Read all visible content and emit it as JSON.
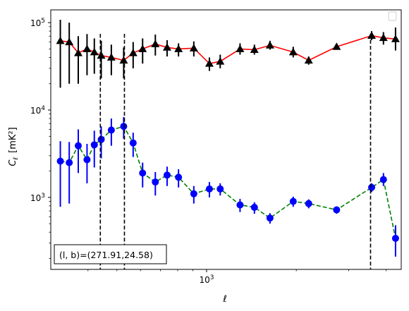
{
  "chart_data": {
    "type": "line",
    "xscale": "log",
    "yscale": "log",
    "xlim": [
      300,
      4500
    ],
    "ylim": [
      150,
      140000
    ],
    "xlabel": "ℓ",
    "ylabel_main": "C",
    "ylabel_sub": "ℓ",
    "ylabel_unit": "[mK²]",
    "xticks": [
      {
        "value": 1000,
        "base": "10",
        "exp": "3"
      }
    ],
    "yticks": [
      {
        "value": 1000,
        "base": "10",
        "exp": "3"
      },
      {
        "value": 10000,
        "base": "10",
        "exp": "4"
      },
      {
        "value": 100000,
        "base": "10",
        "exp": "5"
      }
    ],
    "vlines": [
      440,
      530,
      3550
    ],
    "annotation": "(l, b)=(271.91,24.58)",
    "legend_position": "upper right",
    "series": [
      {
        "line_color": "#ff0000",
        "marker_color": "#000000",
        "marker": "triangle",
        "linestyle": "solid",
        "points": [
          {
            "x": 323,
            "y": 62000,
            "lo": 18000,
            "hi": 108000
          },
          {
            "x": 346,
            "y": 60000,
            "lo": 20000,
            "hi": 100000
          },
          {
            "x": 371,
            "y": 45000,
            "lo": 20000,
            "hi": 70000
          },
          {
            "x": 397,
            "y": 50000,
            "lo": 25000,
            "hi": 74000
          },
          {
            "x": 420,
            "y": 46000,
            "lo": 26000,
            "hi": 66000
          },
          {
            "x": 443,
            "y": 42000,
            "lo": 23000,
            "hi": 62000
          },
          {
            "x": 479,
            "y": 40000,
            "lo": 25000,
            "hi": 56000
          },
          {
            "x": 527,
            "y": 37000,
            "lo": 23000,
            "hi": 52000
          },
          {
            "x": 567,
            "y": 45000,
            "lo": 30000,
            "hi": 60000
          },
          {
            "x": 610,
            "y": 50000,
            "lo": 34000,
            "hi": 66000
          },
          {
            "x": 673,
            "y": 57000,
            "lo": 42000,
            "hi": 73000
          },
          {
            "x": 737,
            "y": 52000,
            "lo": 41000,
            "hi": 63000
          },
          {
            "x": 805,
            "y": 50000,
            "lo": 41000,
            "hi": 58000
          },
          {
            "x": 906,
            "y": 51000,
            "lo": 41000,
            "hi": 61000
          },
          {
            "x": 1022,
            "y": 34000,
            "lo": 28000,
            "hi": 40000
          },
          {
            "x": 1111,
            "y": 36000,
            "lo": 30000,
            "hi": 43000
          },
          {
            "x": 1295,
            "y": 50000,
            "lo": 43000,
            "hi": 58000
          },
          {
            "x": 1447,
            "y": 49000,
            "lo": 43000,
            "hi": 56000
          },
          {
            "x": 1632,
            "y": 55000,
            "lo": 49000,
            "hi": 62000
          },
          {
            "x": 1953,
            "y": 46000,
            "lo": 40000,
            "hi": 53000
          },
          {
            "x": 2201,
            "y": 37000,
            "lo": 33000,
            "hi": 41000
          },
          {
            "x": 2731,
            "y": 53000,
            "lo": 49000,
            "hi": 57000
          },
          {
            "x": 3580,
            "y": 71000,
            "lo": 63000,
            "hi": 80000
          },
          {
            "x": 3922,
            "y": 67000,
            "lo": 56000,
            "hi": 78000
          },
          {
            "x": 4306,
            "y": 65000,
            "lo": 48000,
            "hi": 88000
          }
        ]
      },
      {
        "line_color": "#008000",
        "marker_color": "#0000ff",
        "marker": "circle",
        "linestyle": "dashed",
        "points": [
          {
            "x": 323,
            "y": 2600,
            "lo": 780,
            "hi": 4400
          },
          {
            "x": 346,
            "y": 2500,
            "lo": 850,
            "hi": 4300
          },
          {
            "x": 371,
            "y": 3900,
            "lo": 1900,
            "hi": 6000
          },
          {
            "x": 397,
            "y": 2700,
            "lo": 1450,
            "hi": 4100
          },
          {
            "x": 420,
            "y": 4000,
            "lo": 2200,
            "hi": 5800
          },
          {
            "x": 443,
            "y": 4600,
            "lo": 2800,
            "hi": 6500
          },
          {
            "x": 479,
            "y": 5900,
            "lo": 3900,
            "hi": 8000
          },
          {
            "x": 527,
            "y": 6500,
            "lo": 4700,
            "hi": 8300
          },
          {
            "x": 567,
            "y": 4200,
            "lo": 2900,
            "hi": 5500
          },
          {
            "x": 610,
            "y": 1900,
            "lo": 1300,
            "hi": 2500
          },
          {
            "x": 673,
            "y": 1500,
            "lo": 1050,
            "hi": 1950
          },
          {
            "x": 737,
            "y": 1800,
            "lo": 1350,
            "hi": 2250
          },
          {
            "x": 805,
            "y": 1700,
            "lo": 1300,
            "hi": 2100
          },
          {
            "x": 906,
            "y": 1100,
            "lo": 850,
            "hi": 1350
          },
          {
            "x": 1022,
            "y": 1250,
            "lo": 1000,
            "hi": 1500
          },
          {
            "x": 1111,
            "y": 1250,
            "lo": 1050,
            "hi": 1450
          },
          {
            "x": 1295,
            "y": 820,
            "lo": 680,
            "hi": 960
          },
          {
            "x": 1447,
            "y": 770,
            "lo": 650,
            "hi": 880
          },
          {
            "x": 1632,
            "y": 580,
            "lo": 500,
            "hi": 660
          },
          {
            "x": 1953,
            "y": 900,
            "lo": 780,
            "hi": 1020
          },
          {
            "x": 2201,
            "y": 850,
            "lo": 750,
            "hi": 950
          },
          {
            "x": 2731,
            "y": 720,
            "lo": 650,
            "hi": 790
          },
          {
            "x": 3580,
            "y": 1300,
            "lo": 1150,
            "hi": 1450
          },
          {
            "x": 3922,
            "y": 1600,
            "lo": 1350,
            "hi": 1900
          },
          {
            "x": 4306,
            "y": 340,
            "lo": 210,
            "hi": 480
          }
        ]
      }
    ]
  }
}
